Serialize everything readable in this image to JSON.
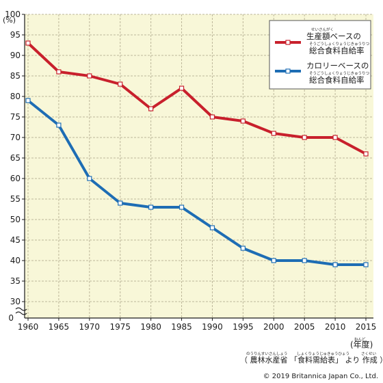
{
  "chart_data": {
    "type": "line",
    "x": [
      1960,
      1965,
      1970,
      1975,
      1980,
      1985,
      1990,
      1995,
      2000,
      2005,
      2010,
      2015
    ],
    "series": [
      {
        "name_ruby": "せいさんがく",
        "name_line1": "生産額ベースの",
        "name_ruby2": "そうごうしょくりょうじきゅうりつ",
        "name_line2": "総合食料自給率",
        "color": "#c8202c",
        "values": [
          93,
          86,
          85,
          83,
          77,
          82,
          75,
          74,
          71,
          70,
          70,
          66
        ]
      },
      {
        "name_line1": "カロリーベースの",
        "name_ruby2": "そうごうしょくりょうじきゅうりつ",
        "name_line2": "総合食料自給率",
        "color": "#1e6db4",
        "values": [
          79,
          73,
          60,
          54,
          53,
          53,
          48,
          43,
          40,
          40,
          39,
          39
        ]
      }
    ],
    "y_unit": "(%)",
    "x_unit": "(年度)",
    "x_unit_ruby": "ねんど",
    "yticks": [
      30,
      35,
      40,
      45,
      50,
      55,
      60,
      65,
      70,
      75,
      80,
      85,
      90,
      95,
      100
    ],
    "ybase_label": "0",
    "ylim": [
      30,
      100
    ],
    "grid": true,
    "axis_break": true,
    "legend_position": "top-right"
  },
  "source": {
    "prefix": "（",
    "org": "農林水産省",
    "org_ruby": "のうりんすいさんしょう",
    "doc": "「食料需給表」",
    "doc_ruby": "しょくりょうじゅきゅうひょう",
    "suffix": "より",
    "made": "作成",
    "made_ruby": "さくせい",
    "close": "）"
  },
  "copyright": "© 2019 Britannica Japan Co., Ltd.",
  "colors": {
    "plot_bg": "#f8f7d8",
    "grid": "#bdb79a"
  }
}
